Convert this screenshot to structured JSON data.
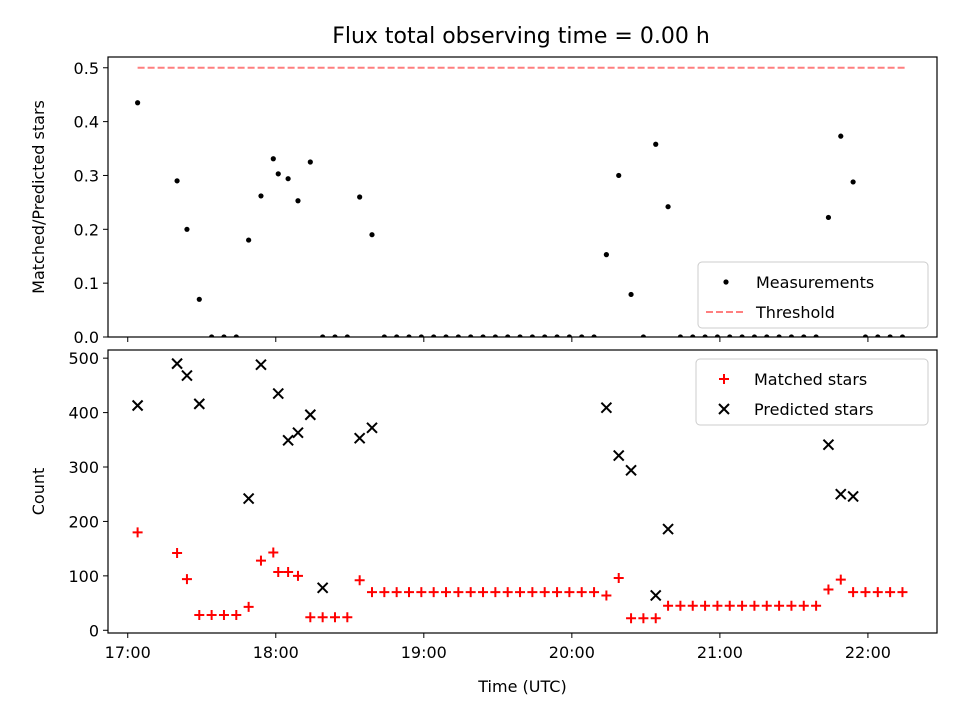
{
  "title": "Flux total observing time = 0.00 h",
  "colors": {
    "threshold": "#ff7f7f",
    "matched": "#ff0000",
    "predicted": "#000000",
    "measurement": "#000000"
  },
  "chart_data": [
    {
      "type": "scatter",
      "ylabel": "Matched/Predicted stars",
      "xlim": [
        "16:52",
        "22:28"
      ],
      "ylim": [
        0,
        0.52
      ],
      "yticks": [
        0.0,
        0.1,
        0.2,
        0.3,
        0.4,
        0.5
      ],
      "ytick_labels": [
        "0.0",
        "0.1",
        "0.2",
        "0.3",
        "0.4",
        "0.5"
      ],
      "legend": {
        "placement": "bottom-right",
        "entries": [
          "Measurements",
          "Threshold"
        ]
      },
      "threshold": {
        "name": "Threshold",
        "y": 0.5,
        "x_range": [
          "17:04",
          "22:15"
        ]
      },
      "series": [
        {
          "name": "Measurements",
          "x": [
            "17:04",
            "17:20",
            "17:24",
            "17:29",
            "17:34",
            "17:39",
            "17:44",
            "17:49",
            "17:54",
            "17:59",
            "18:01",
            "18:05",
            "18:09",
            "18:14",
            "18:19",
            "18:24",
            "18:29",
            "18:34",
            "18:39",
            "18:44",
            "18:49",
            "18:54",
            "18:59",
            "19:04",
            "19:09",
            "19:14",
            "19:19",
            "19:24",
            "19:29",
            "19:34",
            "19:39",
            "19:44",
            "19:49",
            "19:54",
            "19:59",
            "20:04",
            "20:09",
            "20:14",
            "20:19",
            "20:24",
            "20:29",
            "20:34",
            "20:39",
            "20:44",
            "20:49",
            "20:54",
            "20:59",
            "21:04",
            "21:09",
            "21:14",
            "21:19",
            "21:24",
            "21:29",
            "21:34",
            "21:39",
            "21:44",
            "21:49",
            "21:54",
            "21:59",
            "22:04",
            "22:09",
            "22:14"
          ],
          "y": [
            0.435,
            0.29,
            0.2,
            0.07,
            0.0,
            0.0,
            0.0,
            0.18,
            0.262,
            0.331,
            0.303,
            0.294,
            0.253,
            0.325,
            0.0,
            0.0,
            0.0,
            0.26,
            0.19,
            0.0,
            0.0,
            0.0,
            0.0,
            0.0,
            0.0,
            0.0,
            0.0,
            0.0,
            0.0,
            0.0,
            0.0,
            0.0,
            0.0,
            0.0,
            0.0,
            0.0,
            0.0,
            0.153,
            0.3,
            0.079,
            0.0,
            0.358,
            0.242,
            0.0,
            0.0,
            0.0,
            0.0,
            0.0,
            0.0,
            0.0,
            0.0,
            0.0,
            0.0,
            0.0,
            0.0,
            0.222,
            0.373,
            0.288,
            0.0,
            0.0,
            0.0,
            0.0
          ]
        }
      ]
    },
    {
      "type": "scatter",
      "xlabel": "Time (UTC)",
      "ylabel": "Count",
      "xlim": [
        "16:52",
        "22:28"
      ],
      "ylim": [
        -5,
        515
      ],
      "xticks": [
        "17:00",
        "18:00",
        "19:00",
        "20:00",
        "21:00",
        "22:00"
      ],
      "yticks": [
        0,
        100,
        200,
        300,
        400,
        500
      ],
      "ytick_labels": [
        "0",
        "100",
        "200",
        "300",
        "400",
        "500"
      ],
      "legend": {
        "placement": "top-right",
        "entries": [
          "Matched stars",
          "Predicted stars"
        ]
      },
      "series": [
        {
          "name": "Matched stars",
          "x": [
            "17:04",
            "17:20",
            "17:24",
            "17:29",
            "17:34",
            "17:39",
            "17:44",
            "17:49",
            "17:54",
            "17:59",
            "18:01",
            "18:05",
            "18:09",
            "18:14",
            "18:19",
            "18:24",
            "18:29",
            "18:34",
            "18:39",
            "18:44",
            "18:49",
            "18:54",
            "18:59",
            "19:04",
            "19:09",
            "19:14",
            "19:19",
            "19:24",
            "19:29",
            "19:34",
            "19:39",
            "19:44",
            "19:49",
            "19:54",
            "19:59",
            "20:04",
            "20:09",
            "20:14",
            "20:19",
            "20:24",
            "20:29",
            "20:34",
            "20:39",
            "20:44",
            "20:49",
            "20:54",
            "20:59",
            "21:04",
            "21:09",
            "21:14",
            "21:19",
            "21:24",
            "21:29",
            "21:34",
            "21:39",
            "21:44",
            "21:49",
            "21:54",
            "21:59",
            "22:04",
            "22:09",
            "22:14"
          ],
          "y": [
            180,
            142,
            94,
            28,
            28,
            28,
            28,
            43,
            128,
            143,
            107,
            107,
            100,
            24,
            24,
            24,
            24,
            92,
            70,
            70,
            70,
            70,
            70,
            70,
            70,
            70,
            70,
            70,
            70,
            70,
            70,
            70,
            70,
            70,
            70,
            70,
            70,
            64,
            96,
            22,
            22,
            22,
            45,
            45,
            45,
            45,
            45,
            45,
            45,
            45,
            45,
            45,
            45,
            45,
            45,
            75,
            93,
            70,
            70,
            70,
            70,
            70
          ]
        },
        {
          "name": "Predicted stars",
          "x": [
            "17:04",
            "17:20",
            "17:24",
            "17:29",
            "17:49",
            "17:54",
            "18:01",
            "18:05",
            "18:09",
            "18:14",
            "18:19",
            "18:34",
            "18:39",
            "20:14",
            "20:19",
            "20:24",
            "20:34",
            "20:39",
            "21:44",
            "21:49",
            "21:54"
          ],
          "y": [
            413,
            490,
            468,
            416,
            242,
            488,
            435,
            349,
            363,
            396,
            78,
            353,
            372,
            409,
            321,
            294,
            64,
            186,
            341,
            250,
            246
          ]
        }
      ]
    }
  ]
}
